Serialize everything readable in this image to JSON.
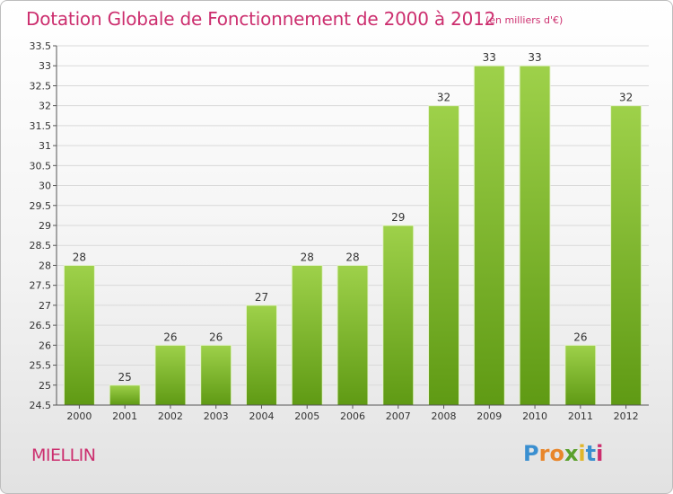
{
  "title": "Dotation Globale de Fonctionnement de 2000 à 2012",
  "subtitle": "(en milliers d'€)",
  "commune": "MIELLIN",
  "logo": {
    "letters": [
      "P",
      "r",
      "o",
      "x",
      "i",
      "t",
      "i"
    ],
    "colors": [
      "#3a8fd0",
      "#e8862b",
      "#e8862b",
      "#5aa02c",
      "#e0b62b",
      "#3a8fd0",
      "#cc2e6e"
    ]
  },
  "chart_data": {
    "type": "bar",
    "categories": [
      "2000",
      "2001",
      "2002",
      "2003",
      "2004",
      "2005",
      "2006",
      "2007",
      "2008",
      "2009",
      "2010",
      "2011",
      "2012"
    ],
    "values": [
      28,
      25,
      26,
      26,
      27,
      28,
      28,
      29,
      32,
      33,
      33,
      26,
      32
    ],
    "ylim": [
      24.5,
      33.5
    ],
    "yticks": [
      "24.5",
      "25",
      "25.5",
      "26",
      "26.5",
      "27",
      "27.5",
      "28",
      "28.5",
      "29",
      "29.5",
      "30",
      "30.5",
      "31",
      "31.5",
      "32",
      "32.5",
      "33",
      "33.5"
    ],
    "grid": true,
    "colors": {
      "bar_top": "#9ed14a",
      "bar_bottom": "#5f9a14",
      "grid": "#d9d9d9",
      "axis": "#555555"
    }
  }
}
